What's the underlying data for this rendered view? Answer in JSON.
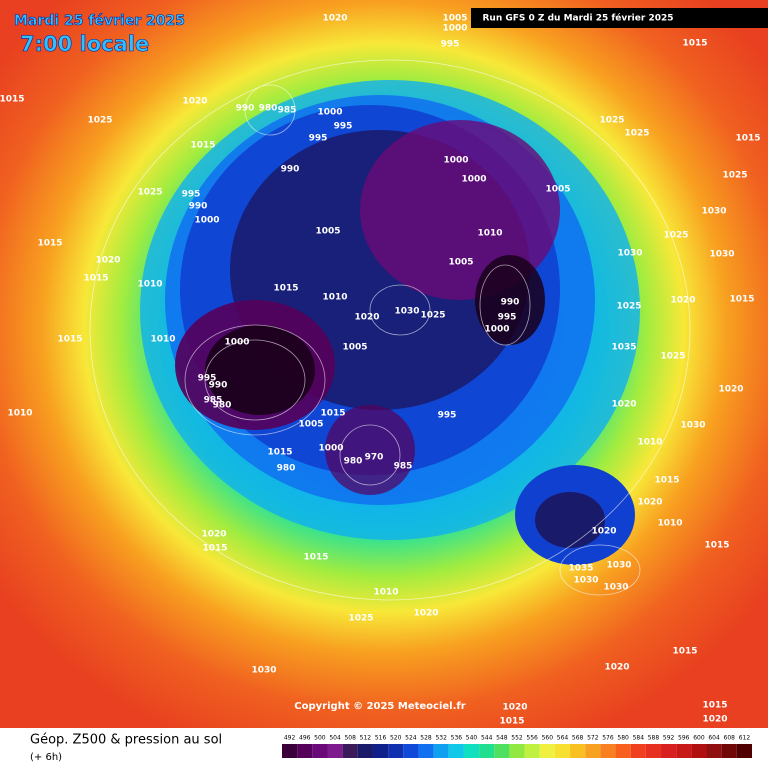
{
  "header": {
    "date": "Mardi 25 février 2025",
    "time": "7:00 locale",
    "run": "Run GFS 0 Z du Mardi 25 février 2025"
  },
  "copyright": "Copyright © 2025 Meteociel.fr",
  "footer": {
    "title": "Géop. Z500 & pression au sol",
    "subtitle": "(+ 6h)"
  },
  "colorbar": {
    "ticks": [
      492,
      496,
      500,
      504,
      508,
      512,
      516,
      520,
      524,
      528,
      532,
      536,
      540,
      544,
      548,
      552,
      556,
      560,
      564,
      568,
      572,
      576,
      580,
      584,
      588,
      592,
      596,
      600,
      604,
      608,
      612
    ],
    "colors": [
      "#3a003a",
      "#55005a",
      "#6a0a78",
      "#7d1a8e",
      "#3a1a5a",
      "#1a1a6a",
      "#10208a",
      "#1030b0",
      "#1048d8",
      "#1070f0",
      "#10a0f0",
      "#10c8e8",
      "#10e0c0",
      "#20e090",
      "#50e060",
      "#90e840",
      "#c0f040",
      "#f0f040",
      "#f8e030",
      "#f8c020",
      "#f8a020",
      "#f88020",
      "#f86020",
      "#f04020",
      "#e83020",
      "#d82020",
      "#c81818",
      "#b01010",
      "#901010",
      "#700808",
      "#500000"
    ]
  },
  "pressure_labels": [
    1020,
    1005,
    1000,
    995,
    1015,
    1015,
    1020,
    990,
    980,
    985,
    1000,
    995,
    995,
    1025,
    1015,
    1025,
    1025,
    1000,
    1000,
    990,
    1005,
    1025,
    995,
    990,
    1000,
    1030,
    1005,
    1010,
    1015,
    1025,
    1005,
    1030,
    1020,
    1015,
    1010,
    1015,
    1010,
    1020,
    1030,
    1025,
    990,
    995,
    1000,
    1025,
    1020,
    1010,
    1000,
    1005,
    1035,
    1025,
    995,
    990,
    985,
    980,
    1020,
    1020,
    995,
    1015,
    1005,
    1000,
    980,
    970,
    985,
    1015,
    980,
    1030,
    1010,
    1015,
    1020,
    1020,
    1010,
    1020,
    1015,
    1015,
    1035,
    1030,
    1030,
    1030,
    1010,
    1020,
    1025,
    1015,
    1015,
    1020,
    1030,
    1020,
    1015,
    1015,
    1020,
    1010,
    1015,
    1030,
    1015,
    1025,
    1015
  ]
}
